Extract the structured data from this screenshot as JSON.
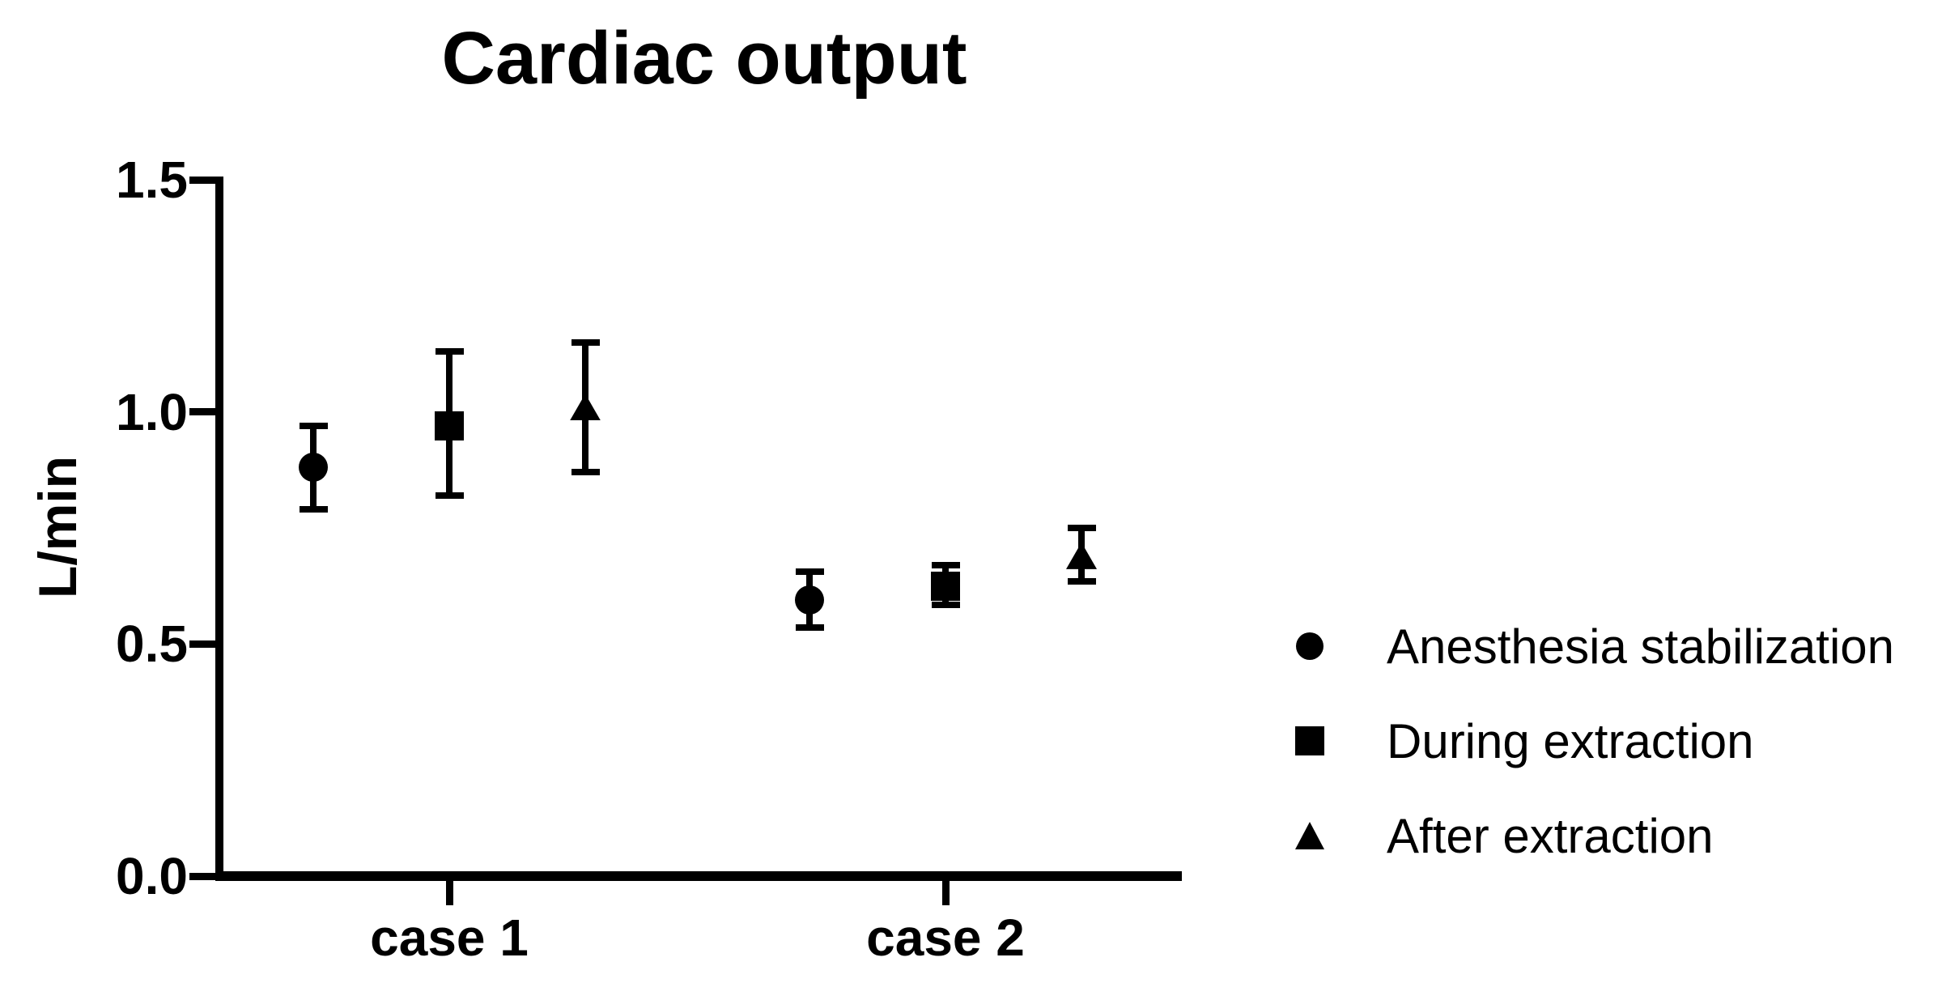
{
  "chart_data": {
    "type": "scatter",
    "title": "Cardiac output",
    "xlabel": "",
    "ylabel": "L/min",
    "categories": [
      "case 1",
      "case 2"
    ],
    "ylim": [
      0,
      1.5
    ],
    "yticks": [
      0,
      0.5,
      1.0,
      1.5
    ],
    "ytick_labels": [
      "0.0",
      "0.5",
      "1.0",
      "1.5"
    ],
    "grid": false,
    "legend_position": "right-center",
    "error_bars": "symmetric with caps",
    "colors": {
      "marker": "#000000",
      "axis": "#000000",
      "background": "#ffffff"
    },
    "series": [
      {
        "name": "Anesthesia stabilization",
        "marker": "circle",
        "points": [
          {
            "category": "case 1",
            "mean": 0.88,
            "err_low": 0.79,
            "err_high": 0.97
          },
          {
            "category": "case 2",
            "mean": 0.595,
            "err_low": 0.535,
            "err_high": 0.655
          }
        ]
      },
      {
        "name": "During extraction",
        "marker": "square",
        "points": [
          {
            "category": "case 1",
            "mean": 0.97,
            "err_low": 0.82,
            "err_high": 1.13
          },
          {
            "category": "case 2",
            "mean": 0.625,
            "err_low": 0.585,
            "err_high": 0.67
          }
        ]
      },
      {
        "name": "After extraction",
        "marker": "triangle",
        "points": [
          {
            "category": "case 1",
            "mean": 1.01,
            "err_low": 0.87,
            "err_high": 1.15
          },
          {
            "category": "case 2",
            "mean": 0.69,
            "err_low": 0.635,
            "err_high": 0.75
          }
        ]
      }
    ]
  }
}
